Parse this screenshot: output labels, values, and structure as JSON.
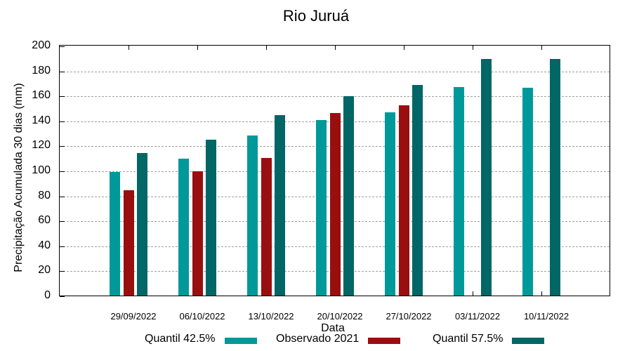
{
  "chart_data": {
    "type": "bar",
    "title": "Rio Juruá",
    "xlabel": "Data",
    "ylabel": "Precipitação Acumulada 30 dias (mm)",
    "ylim": [
      0,
      200
    ],
    "yticks": [
      0,
      20,
      40,
      60,
      80,
      100,
      120,
      140,
      160,
      180,
      200
    ],
    "grid": true,
    "legend_position": "bottom",
    "categories": [
      "29/09/2022",
      "06/10/2022",
      "13/10/2022",
      "20/10/2022",
      "27/10/2022",
      "03/11/2022",
      "10/11/2022"
    ],
    "series": [
      {
        "name": "Quantil 42.5%",
        "color": "#009999",
        "values": [
          99,
          109.5,
          128,
          140.5,
          146.5,
          167,
          166.5
        ]
      },
      {
        "name": "Observado 2021",
        "color": "#990f0f",
        "values": [
          84,
          99.5,
          110,
          146,
          152.5,
          null,
          null
        ]
      },
      {
        "name": "Quantil 57.5%",
        "color": "#006666",
        "values": [
          114,
          124.5,
          144.5,
          159.5,
          168.5,
          189.5,
          189.5
        ]
      }
    ]
  },
  "labels": {
    "title": "Rio Juruá",
    "xtitle": "Data",
    "ytitle": "Precipitação Acumulada 30 dias (mm)",
    "legend": [
      "Quantil 42.5%",
      "Observado 2021",
      "Quantil 57.5%"
    ]
  }
}
